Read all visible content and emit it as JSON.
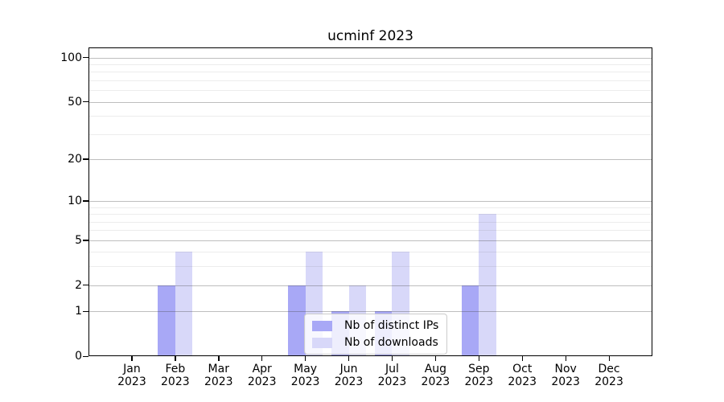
{
  "chart_data": {
    "type": "bar",
    "title": "ucminf 2023",
    "categories": [
      "Jan",
      "Feb",
      "Mar",
      "Apr",
      "May",
      "Jun",
      "Jul",
      "Aug",
      "Sep",
      "Oct",
      "Nov",
      "Dec"
    ],
    "x_year_label": "2023",
    "series": [
      {
        "name": "Nb of distinct IPs",
        "color": "#a8a8f6",
        "values": [
          0,
          2,
          0,
          0,
          2,
          1,
          1,
          0,
          2,
          0,
          0,
          0
        ]
      },
      {
        "name": "Nb of downloads",
        "color": "#d8d8f9",
        "values": [
          0,
          4,
          0,
          0,
          4,
          2,
          4,
          0,
          8,
          0,
          0,
          0
        ]
      }
    ],
    "y_axis": {
      "scale": "log1p",
      "tick_values": [
        0,
        1,
        2,
        5,
        10,
        20,
        50,
        100
      ],
      "minor_grid_values": [
        3,
        4,
        6,
        7,
        8,
        9,
        30,
        40,
        60,
        70,
        80,
        90
      ],
      "ylim": [
        0,
        117
      ]
    },
    "grid": true,
    "legend_position": "lower center",
    "colors": {
      "major_grid": "rgba(68,68,68,0.35)",
      "minor_grid": "rgba(68,68,68,0.10)",
      "axis": "#000000",
      "background": "#ffffff"
    }
  }
}
